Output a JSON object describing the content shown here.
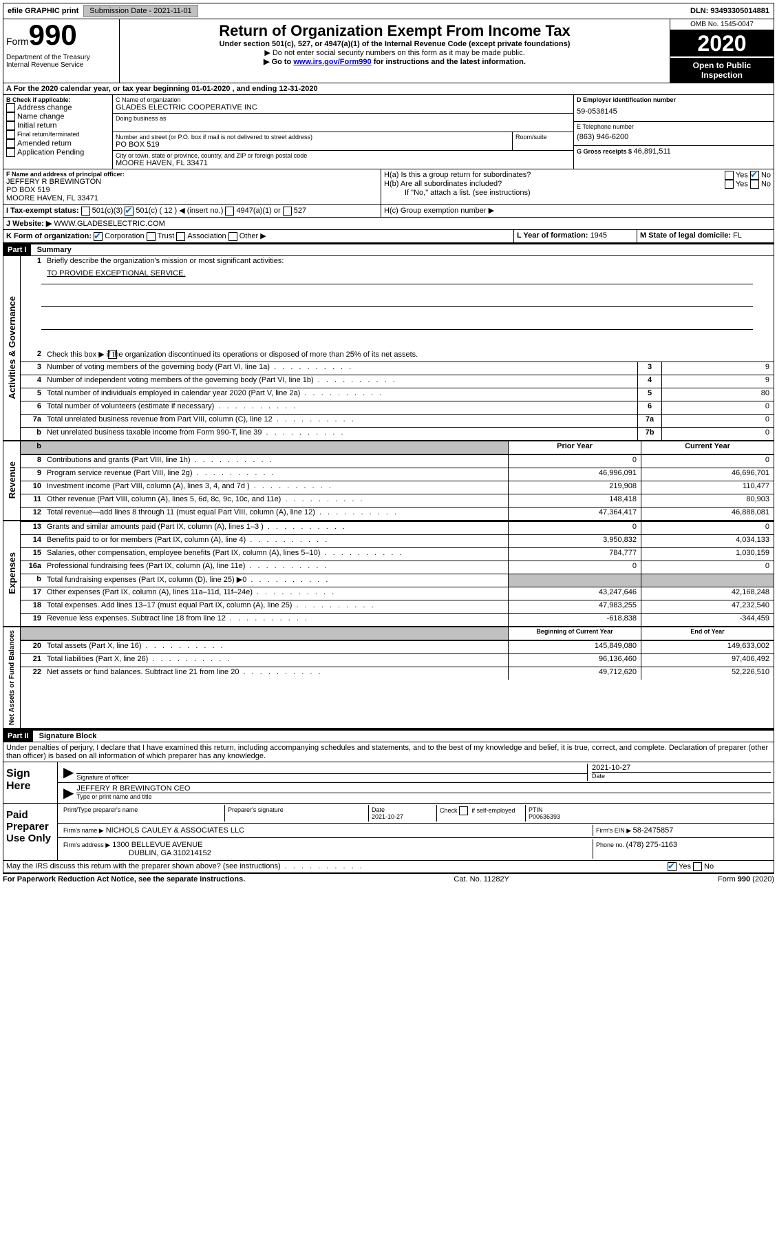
{
  "topbar": {
    "efile": "efile GRAPHIC print",
    "submission_label": "Submission Date - 2021-11-01",
    "dln_label": "DLN: 93493305014881"
  },
  "header": {
    "form_word": "Form",
    "form_num": "990",
    "dept": "Department of the Treasury\nInternal Revenue Service",
    "title": "Return of Organization Exempt From Income Tax",
    "subtitle": "Under section 501(c), 527, or 4947(a)(1) of the Internal Revenue Code (except private foundations)",
    "instr1": "Do not enter social security numbers on this form as it may be made public.",
    "instr2_pre": "Go to ",
    "instr2_link": "www.irs.gov/Form990",
    "instr2_post": " for instructions and the latest information.",
    "omb": "OMB No. 1545-0047",
    "year": "2020",
    "open": "Open to Public Inspection"
  },
  "a_line": "For the 2020 calendar year, or tax year beginning 01-01-2020     , and ending 12-31-2020",
  "b": {
    "label": "B Check if applicable:",
    "opts": [
      "Address change",
      "Name change",
      "Initial return",
      "Final return/terminated",
      "Amended return",
      "Application Pending"
    ]
  },
  "c": {
    "name_label": "C Name of organization",
    "name": "GLADES ELECTRIC COOPERATIVE INC",
    "dba_label": "Doing business as",
    "addr_label": "Number and street (or P.O. box if mail is not delivered to street address)",
    "room_label": "Room/suite",
    "addr": "PO BOX 519",
    "city_label": "City or town, state or province, country, and ZIP or foreign postal code",
    "city": "MOORE HAVEN, FL  33471"
  },
  "d": {
    "label": "D Employer identification number",
    "val": "59-0538145"
  },
  "e": {
    "label": "E Telephone number",
    "val": "(863) 946-6200"
  },
  "g": {
    "label": "G Gross receipts $ ",
    "val": "46,891,511"
  },
  "f": {
    "label": "F  Name and address of principal officer:",
    "name": "JEFFERY R BREWINGTON",
    "addr1": "PO BOX 519",
    "addr2": "MOORE HAVEN, FL  33471"
  },
  "h": {
    "a_label": "H(a)  Is this a group return for subordinates?",
    "b_label": "H(b)  Are all subordinates included?",
    "b_note": "If \"No,\" attach a list. (see instructions)",
    "c_label": "H(c)  Group exemption number ▶"
  },
  "i": {
    "label": "I   Tax-exempt status:",
    "o1": "501(c)(3)",
    "o2": "501(c) ( 12 ) ◀ (insert no.)",
    "o3": "4947(a)(1) or",
    "o4": "527"
  },
  "j": {
    "label": "J   Website: ▶",
    "val": "  WWW.GLADESELECTRIC.COM"
  },
  "k": {
    "label": "K Form of organization:",
    "opts": [
      "Corporation",
      "Trust",
      "Association",
      "Other ▶"
    ]
  },
  "l": {
    "label": "L Year of formation: ",
    "val": "1945"
  },
  "m": {
    "label": "M State of legal domicile: ",
    "val": "FL"
  },
  "part1": {
    "tag": "Part I",
    "title": "Summary"
  },
  "gov": {
    "side": "Activities & Governance",
    "l1": "Briefly describe the organization's mission or most significant activities:",
    "l1v": "TO PROVIDE EXCEPTIONAL SERVICE.",
    "l2": "Check this box ▶        if the organization discontinued its operations or disposed of more than 25% of its net assets.",
    "rows": [
      {
        "n": "3",
        "t": "Number of voting members of the governing body (Part VI, line 1a)",
        "b": "3",
        "v": "9"
      },
      {
        "n": "4",
        "t": "Number of independent voting members of the governing body (Part VI, line 1b)",
        "b": "4",
        "v": "9"
      },
      {
        "n": "5",
        "t": "Total number of individuals employed in calendar year 2020 (Part V, line 2a)",
        "b": "5",
        "v": "80"
      },
      {
        "n": "6",
        "t": "Total number of volunteers (estimate if necessary)",
        "b": "6",
        "v": "0"
      },
      {
        "n": "7a",
        "t": "Total unrelated business revenue from Part VIII, column (C), line 12",
        "b": "7a",
        "v": "0"
      },
      {
        "n": "b",
        "t": "Net unrelated business taxable income from Form 990-T, line 39",
        "b": "7b",
        "v": "0"
      }
    ]
  },
  "rev": {
    "side": "Revenue",
    "h1": "Prior Year",
    "h2": "Current Year",
    "rows": [
      {
        "n": "8",
        "t": "Contributions and grants (Part VIII, line 1h)",
        "p": "0",
        "c": "0"
      },
      {
        "n": "9",
        "t": "Program service revenue (Part VIII, line 2g)",
        "p": "46,996,091",
        "c": "46,696,701"
      },
      {
        "n": "10",
        "t": "Investment income (Part VIII, column (A), lines 3, 4, and 7d )",
        "p": "219,908",
        "c": "110,477"
      },
      {
        "n": "11",
        "t": "Other revenue (Part VIII, column (A), lines 5, 6d, 8c, 9c, 10c, and 11e)",
        "p": "148,418",
        "c": "80,903"
      },
      {
        "n": "12",
        "t": "Total revenue—add lines 8 through 11 (must equal Part VIII, column (A), line 12)",
        "p": "47,364,417",
        "c": "46,888,081"
      }
    ]
  },
  "exp": {
    "side": "Expenses",
    "rows": [
      {
        "n": "13",
        "t": "Grants and similar amounts paid (Part IX, column (A), lines 1–3 )",
        "p": "0",
        "c": "0"
      },
      {
        "n": "14",
        "t": "Benefits paid to or for members (Part IX, column (A), line 4)",
        "p": "3,950,832",
        "c": "4,034,133"
      },
      {
        "n": "15",
        "t": "Salaries, other compensation, employee benefits (Part IX, column (A), lines 5–10)",
        "p": "784,777",
        "c": "1,030,159"
      },
      {
        "n": "16a",
        "t": "Professional fundraising fees (Part IX, column (A), line 11e)",
        "p": "0",
        "c": "0"
      },
      {
        "n": "b",
        "t": "Total fundraising expenses (Part IX, column (D), line 25) ▶0",
        "p": "",
        "c": "",
        "shaded": true
      },
      {
        "n": "17",
        "t": "Other expenses (Part IX, column (A), lines 11a–11d, 11f–24e)",
        "p": "43,247,646",
        "c": "42,168,248"
      },
      {
        "n": "18",
        "t": "Total expenses. Add lines 13–17 (must equal Part IX, column (A), line 25)",
        "p": "47,983,255",
        "c": "47,232,540"
      },
      {
        "n": "19",
        "t": "Revenue less expenses. Subtract line 18 from line 12",
        "p": "-618,838",
        "c": "-344,459"
      }
    ]
  },
  "net": {
    "side": "Net Assets or Fund Balances",
    "h1": "Beginning of Current Year",
    "h2": "End of Year",
    "rows": [
      {
        "n": "20",
        "t": "Total assets (Part X, line 16)",
        "p": "145,849,080",
        "c": "149,633,002"
      },
      {
        "n": "21",
        "t": "Total liabilities (Part X, line 26)",
        "p": "96,136,460",
        "c": "97,406,492"
      },
      {
        "n": "22",
        "t": "Net assets or fund balances. Subtract line 21 from line 20",
        "p": "49,712,620",
        "c": "52,226,510"
      }
    ]
  },
  "part2": {
    "tag": "Part II",
    "title": "Signature Block"
  },
  "perjury": "Under penalties of perjury, I declare that I have examined this return, including accompanying schedules and statements, and to the best of my knowledge and belief, it is true, correct, and complete. Declaration of preparer (other than officer) is based on all information of which preparer has any knowledge.",
  "sign": {
    "side": "Sign Here",
    "sig_label": "Signature of officer",
    "date": "2021-10-27",
    "date_label": "Date",
    "name": "JEFFERY R BREWINGTON  CEO",
    "name_label": "Type or print name and title"
  },
  "paid": {
    "side": "Paid Preparer Use Only",
    "h1": "Print/Type preparer's name",
    "h2": "Preparer's signature",
    "h3_label": "Date",
    "h3": "2021-10-27",
    "h4_label": "Check          if self-employed",
    "h5_label": "PTIN",
    "h5": "P00636393",
    "firm_label": "Firm's name      ▶",
    "firm": "NICHOLS CAULEY & ASSOCIATES LLC",
    "ein_label": "Firm's EIN ▶ ",
    "ein": "58-2475857",
    "addr_label": "Firm's address  ▶",
    "addr1": "1300 BELLEVUE AVENUE",
    "addr2": "DUBLIN, GA  310214152",
    "phone_label": "Phone no. ",
    "phone": "(478) 275-1163"
  },
  "discuss": "May the IRS discuss this return with the preparer shown above? (see instructions)",
  "footer": {
    "left": "For Paperwork Reduction Act Notice, see the separate instructions.",
    "mid": "Cat. No. 11282Y",
    "right": "Form 990 (2020)"
  },
  "yes": "Yes",
  "no": "No"
}
